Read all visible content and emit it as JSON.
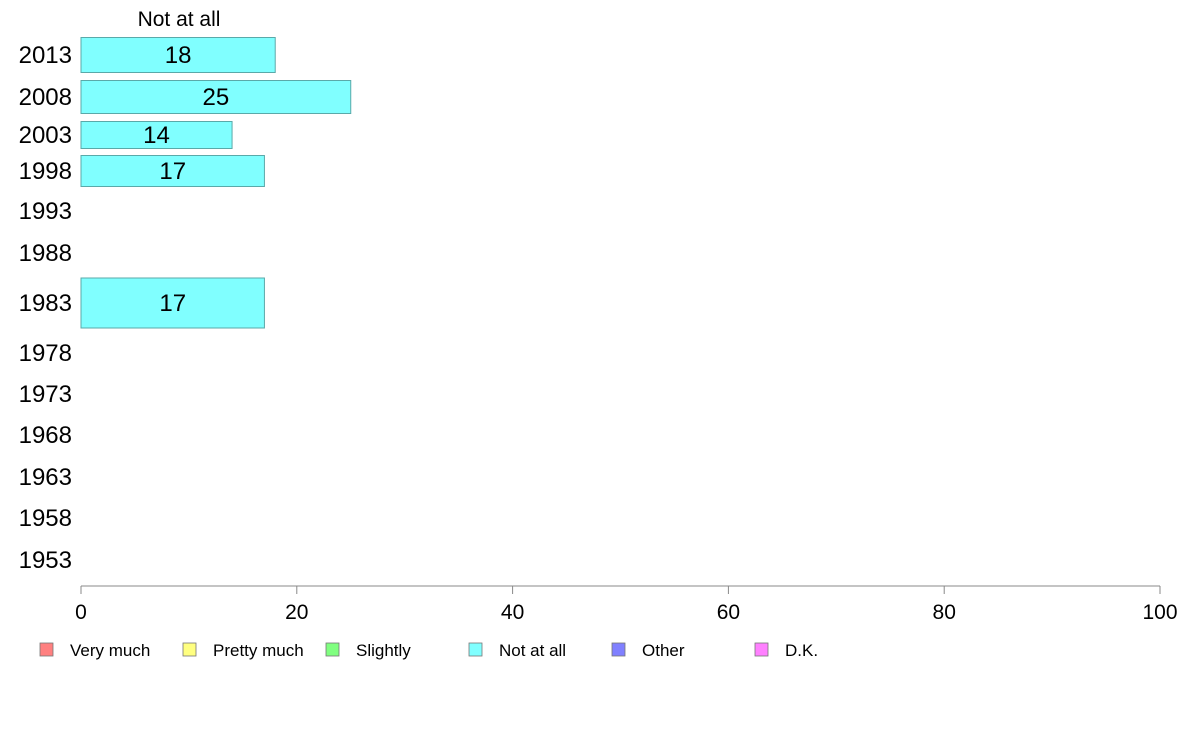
{
  "chart_data": {
    "type": "bar",
    "orientation": "horizontal",
    "series_header": "Not at all",
    "categories": [
      "2013",
      "2008",
      "2003",
      "1998",
      "1993",
      "1988",
      "1983",
      "1978",
      "1973",
      "1968",
      "1963",
      "1958",
      "1953"
    ],
    "series": [
      {
        "values": [
          18,
          25,
          14,
          17,
          null,
          null,
          17,
          null,
          null,
          null,
          null,
          null,
          null
        ],
        "color": "#80ffff"
      }
    ],
    "value_labels": [
      "18",
      "25",
      "14",
      "17",
      "",
      "",
      "17",
      "",
      "",
      "",
      "",
      "",
      ""
    ],
    "xlim": [
      0,
      100
    ],
    "xticks": [
      "0",
      "20",
      "40",
      "60",
      "80",
      "100"
    ],
    "grid": false,
    "legend_position": "bottom",
    "legend": [
      {
        "label": "Very much",
        "color": "#ff8080"
      },
      {
        "label": "Pretty much",
        "color": "#ffff80"
      },
      {
        "label": "Slightly",
        "color": "#80ff80"
      },
      {
        "label": "Not at all",
        "color": "#80ffff"
      },
      {
        "label": "Other",
        "color": "#8080ff"
      },
      {
        "label": "D.K.",
        "color": "#ff80ff"
      }
    ]
  }
}
